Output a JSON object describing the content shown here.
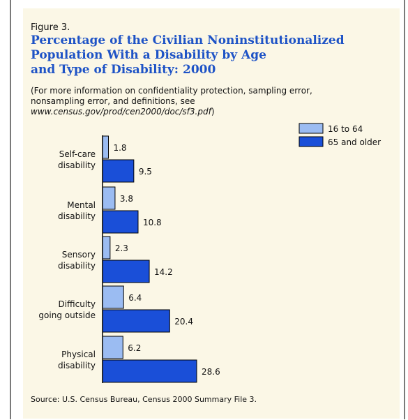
{
  "figure_label": "Figure 3.",
  "title_lines": [
    "Percentage of the Civilian Noninstitutionalized",
    "Population With a Disability by Age",
    "and Type of Disability: 2000"
  ],
  "note_prefix": "(For more information on confidentiality protection, sampling error, nonsampling error, and definitions, see ",
  "note_url": "www.census.gov/prod/cen2000/doc/sf3.pdf",
  "note_suffix": ")",
  "source": "Source: U.S. Census Bureau, Census 2000 Summary File 3.",
  "colors": {
    "panel_background": "#fbf7e6",
    "title": "#1e53c6",
    "series_16_64": "#9bbcf2",
    "series_65_older": "#1a4fd8"
  },
  "chart_data": {
    "type": "bar",
    "orientation": "horizontal",
    "title": "Percentage of the Civilian Noninstitutionalized Population With a Disability by Age and Type of Disability: 2000",
    "categories": [
      [
        "Self-care",
        "disability"
      ],
      [
        "Mental",
        "disability"
      ],
      [
        "Sensory",
        "disability"
      ],
      [
        "Difficulty",
        "going outside"
      ],
      [
        "Physical",
        "disability"
      ]
    ],
    "series": [
      {
        "name": "16 to 64",
        "values": [
          1.8,
          3.8,
          2.3,
          6.4,
          6.2
        ],
        "color": "#9bbcf2"
      },
      {
        "name": "65 and older",
        "values": [
          9.5,
          10.8,
          14.2,
          20.4,
          28.6
        ],
        "color": "#1a4fd8"
      }
    ],
    "xlim": [
      0,
      30
    ],
    "data_labels": true,
    "grid": false,
    "legend_position": "top-right"
  }
}
